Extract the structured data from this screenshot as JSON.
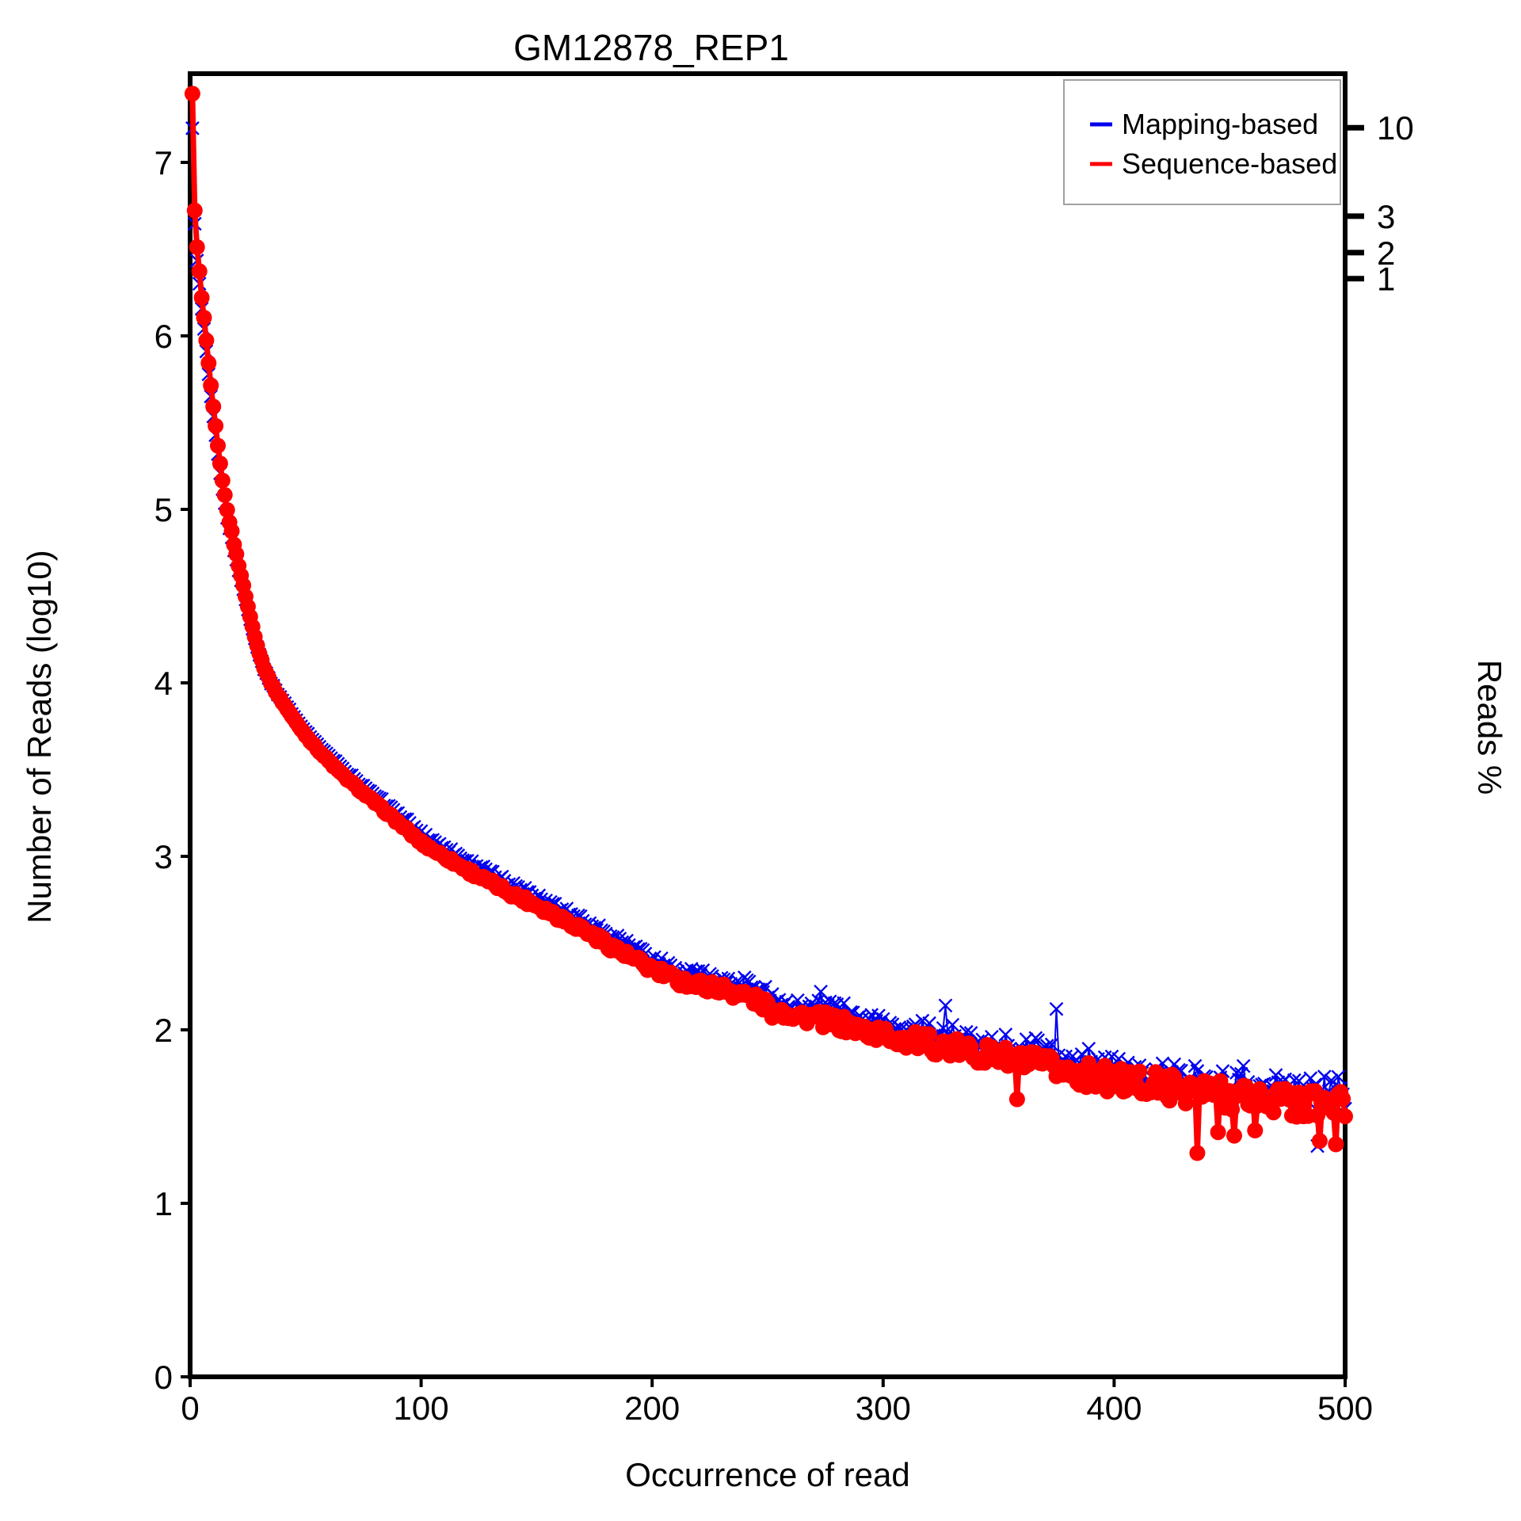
{
  "chart_data": {
    "type": "line",
    "title": "GM12878_REP1",
    "xlabel": "Occurrence of read",
    "ylabel": "Number of Reads (log10)",
    "ylabel_right": "Reads %",
    "xlim": [
      0,
      500
    ],
    "ylim": [
      0,
      7.51
    ],
    "grid": false,
    "legend_position": "top-right",
    "x_ticks": [
      0,
      100,
      200,
      300,
      400,
      500
    ],
    "y_ticks": [
      0,
      1,
      2,
      3,
      4,
      5,
      6,
      7
    ],
    "right_ticks": [
      {
        "label": "10",
        "v": 7.2
      },
      {
        "label": "3",
        "v": 6.69
      },
      {
        "label": "2",
        "v": 6.48
      },
      {
        "label": "1",
        "v": 6.33
      }
    ],
    "legend": [
      {
        "label": "Mapping-based",
        "color": "#0000ee"
      },
      {
        "label": "Sequence-based",
        "color": "#ff0000"
      }
    ],
    "series": [
      {
        "name": "Sequence-based",
        "color": "#ff0000",
        "marker": "circle",
        "anchors": [
          [
            1,
            7.4
          ],
          [
            2,
            6.72
          ],
          [
            3,
            6.51
          ],
          [
            4,
            6.37
          ],
          [
            5,
            6.22
          ],
          [
            6,
            6.1
          ],
          [
            7,
            5.97
          ],
          [
            8,
            5.84
          ],
          [
            9,
            5.71
          ],
          [
            10,
            5.59
          ],
          [
            11,
            5.48
          ],
          [
            12,
            5.37
          ],
          [
            13,
            5.26
          ],
          [
            14,
            5.17
          ],
          [
            15,
            5.08
          ],
          [
            16,
            5.0
          ],
          [
            17,
            4.93
          ],
          [
            18,
            4.87
          ],
          [
            19,
            4.8
          ],
          [
            20,
            4.74
          ],
          [
            22,
            4.62
          ],
          [
            24,
            4.5
          ],
          [
            26,
            4.38
          ],
          [
            28,
            4.27
          ],
          [
            30,
            4.17
          ],
          [
            32,
            4.09
          ],
          [
            35,
            4.0
          ],
          [
            38,
            3.93
          ],
          [
            42,
            3.85
          ],
          [
            46,
            3.77
          ],
          [
            50,
            3.7
          ],
          [
            55,
            3.62
          ],
          [
            60,
            3.55
          ],
          [
            66,
            3.47
          ],
          [
            72,
            3.4
          ],
          [
            80,
            3.31
          ],
          [
            88,
            3.22
          ],
          [
            94,
            3.15
          ],
          [
            100,
            3.08
          ],
          [
            110,
            3.0
          ],
          [
            120,
            2.92
          ],
          [
            130,
            2.85
          ],
          [
            140,
            2.78
          ],
          [
            150,
            2.72
          ],
          [
            160,
            2.65
          ],
          [
            170,
            2.58
          ],
          [
            180,
            2.5
          ],
          [
            190,
            2.42
          ],
          [
            200,
            2.35
          ],
          [
            210,
            2.29
          ],
          [
            220,
            2.26
          ],
          [
            230,
            2.24
          ],
          [
            240,
            2.2
          ],
          [
            250,
            2.14
          ],
          [
            258,
            2.1
          ],
          [
            270,
            2.07
          ],
          [
            280,
            2.04
          ],
          [
            290,
            2.0
          ],
          [
            300,
            1.97
          ],
          [
            320,
            1.92
          ],
          [
            340,
            1.87
          ],
          [
            360,
            1.82
          ],
          [
            380,
            1.76
          ],
          [
            400,
            1.71
          ],
          [
            420,
            1.68
          ],
          [
            440,
            1.64
          ],
          [
            460,
            1.61
          ],
          [
            480,
            1.58
          ],
          [
            500,
            1.56
          ]
        ],
        "outliers": [
          [
            252,
            2.07
          ],
          [
            358,
            1.6
          ],
          [
            436,
            1.29
          ],
          [
            445,
            1.41
          ],
          [
            452,
            1.39
          ],
          [
            461,
            1.42
          ],
          [
            489,
            1.36
          ],
          [
            496,
            1.34
          ]
        ]
      },
      {
        "name": "Mapping-based",
        "color": "#0000ee",
        "marker": "x",
        "offset_from_sequence": [
          [
            1,
            -0.2
          ],
          [
            2,
            -0.08
          ],
          [
            4,
            -0.07
          ],
          [
            8,
            -0.06
          ],
          [
            14,
            -0.05
          ],
          [
            20,
            -0.03
          ],
          [
            30,
            -0.01
          ],
          [
            40,
            0.01
          ],
          [
            60,
            0.03
          ],
          [
            80,
            0.04
          ],
          [
            100,
            0.05
          ],
          [
            150,
            0.05
          ],
          [
            200,
            0.06
          ],
          [
            300,
            0.06
          ],
          [
            400,
            0.06
          ],
          [
            500,
            0.07
          ]
        ],
        "outliers": [
          [
            273,
            2.22
          ],
          [
            327,
            2.14
          ],
          [
            375,
            2.12
          ],
          [
            488,
            1.33
          ]
        ]
      }
    ],
    "noise": {
      "base": 0.005,
      "onset_x": 50,
      "max_sequence": 0.095,
      "blue_extra_scale": 0.8,
      "blue_corr": 0.7
    }
  }
}
